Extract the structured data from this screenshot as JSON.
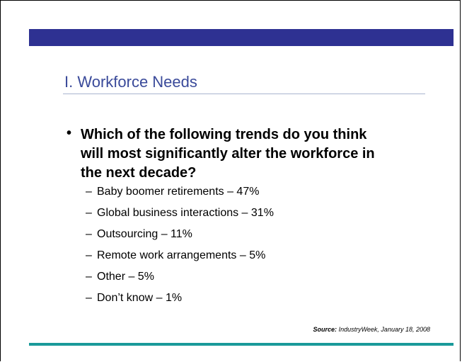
{
  "title": "I. Workforce Needs",
  "question": "Which of the following trends do you think will most significantly alter the workforce in the next decade?",
  "items": [
    "Baby boomer retirements – 47%",
    "Global business interactions – 31%",
    "Outsourcing – 11%",
    "Remote work arrangements – 5%",
    "Other – 5%",
    "Don’t know – 1%"
  ],
  "source": {
    "label": "Source:",
    "text": "IndustryWeek, January 18, 2008"
  }
}
